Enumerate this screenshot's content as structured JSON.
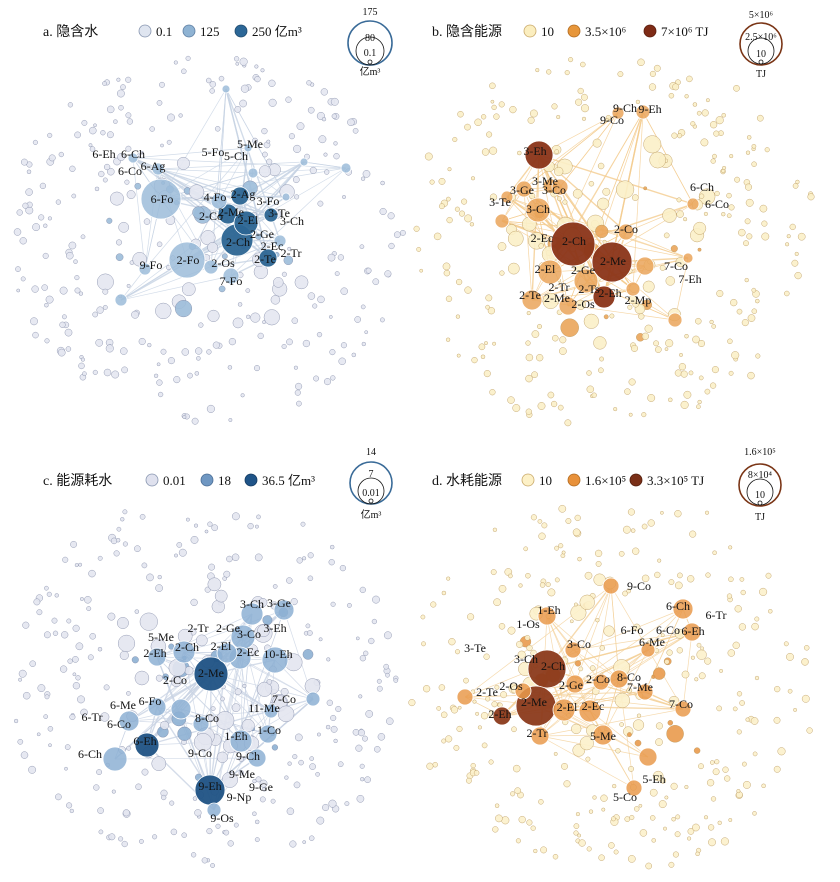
{
  "panels": [
    {
      "title": "a. 隐含水",
      "legend": [
        {
          "label": "0.1",
          "color": "#dfe5f0"
        },
        {
          "label": "125",
          "color": "#8fb3d3"
        },
        {
          "label": "250 亿m³",
          "color": "#2c6797"
        }
      ],
      "scale": {
        "big": "175",
        "mid": "80",
        "small": "0.1",
        "unit": "亿m³",
        "stroke": "#3a6b98"
      },
      "palette": {
        "light": "#e4e7f1",
        "mid": "#9cbcd9",
        "dark": "#2c6592",
        "edge": "#c7d3e4"
      },
      "labels": [
        "6-Eh",
        "6-Ch",
        "6-Co",
        "6-Ag",
        "6-Fo",
        "5-Fo",
        "5-Ch",
        "5-Me",
        "4-Fo",
        "2-Ag",
        "3-Fo",
        "2-Co",
        "2-Me",
        "2-El",
        "3-Te",
        "3-Ch",
        "2-Ch",
        "2-Ge",
        "2-Ec",
        "9-Fo",
        "2-Fo",
        "2-Os",
        "2-Te",
        "2-Tr",
        "7-Fo"
      ]
    },
    {
      "title": "b. 隐含能源",
      "legend": [
        {
          "label": "10",
          "color": "#fbeebf"
        },
        {
          "label": "3.5×10⁶",
          "color": "#e7963a"
        },
        {
          "label": "7×10⁶ TJ",
          "color": "#7e2b16"
        }
      ],
      "scale": {
        "big": "5×10⁶",
        "mid": "2.5×10⁶",
        "small": "10",
        "unit": "TJ",
        "stroke": "#7a3516"
      },
      "palette": {
        "light": "#fbf0c8",
        "mid": "#eaa55a",
        "dark": "#8a3418",
        "edge": "#f4cc8e"
      },
      "labels": [
        "9-Ch",
        "9-Eh",
        "9-Co",
        "3-Eh",
        "3-Me",
        "3-Ge",
        "3-Co",
        "3-Te",
        "3-Ch",
        "6-Ch",
        "6-Co",
        "2-Co",
        "2-Ec",
        "2-Ch",
        "2-El",
        "2-Ge",
        "2-Me",
        "7-Co",
        "7-Eh",
        "2-Tr",
        "2-Te",
        "2-Me",
        "2-Ts",
        "2-Os",
        "2-Eh",
        "2-Mp"
      ]
    },
    {
      "title": "c. 能源耗水",
      "legend": [
        {
          "label": "0.01",
          "color": "#dfe1ee"
        },
        {
          "label": "18",
          "color": "#6f97c2"
        },
        {
          "label": "36.5 亿m³",
          "color": "#1f5488"
        }
      ],
      "scale": {
        "big": "14",
        "mid": "7",
        "small": "0.01",
        "unit": "亿m³",
        "stroke": "#3a6b98"
      },
      "palette": {
        "light": "#e3e5f0",
        "mid": "#8db0d3",
        "dark": "#1f5284",
        "edge": "#c9d3e4"
      },
      "labels": [
        "3-Ch",
        "3-Ge",
        "5-Me",
        "2-Tr",
        "2-Ge",
        "3-Co",
        "3-Eh",
        "2-Eh",
        "2-Ch",
        "2-El",
        "2-Ec",
        "10-Eh",
        "2-Co",
        "2-Me",
        "6-Me",
        "6-Fo",
        "6-Tr",
        "6-Co",
        "6-Eh",
        "6-Ch",
        "7-Co",
        "11-Me",
        "8-Co",
        "1-Eh",
        "1-Co",
        "9-Co",
        "9-Ch",
        "9-Me",
        "9-Eh",
        "9-Ge",
        "9-Np",
        "9-Os"
      ]
    },
    {
      "title": "d. 水耗能源",
      "legend": [
        {
          "label": "10",
          "color": "#fdf1c7"
        },
        {
          "label": "1.6×10⁵",
          "color": "#e8913a"
        },
        {
          "label": "3.3×10⁵ TJ",
          "color": "#7a2f17"
        }
      ],
      "scale": {
        "big": "1.6×10⁵",
        "mid": "8×10⁴",
        "small": "10",
        "unit": "TJ",
        "stroke": "#7a3516"
      },
      "palette": {
        "light": "#fcf1cb",
        "mid": "#e99a4c",
        "dark": "#8b3a1b",
        "edge": "#f4d19a"
      },
      "labels": [
        "9-Co",
        "1-Eh",
        "1-Os",
        "6-Ch",
        "6-Tr",
        "6-Fo",
        "6-Co",
        "6-Eh",
        "6-Me",
        "3-Te",
        "3-Co",
        "3-Ch",
        "2-Ch",
        "2-Os",
        "2-Te",
        "2-Eh",
        "2-Me",
        "2-Ge",
        "2-Co",
        "8-Co",
        "7-Me",
        "2-El",
        "2-Ec",
        "2-Tr",
        "5-Me",
        "7-Co",
        "5-Eh",
        "5-Co"
      ]
    }
  ]
}
